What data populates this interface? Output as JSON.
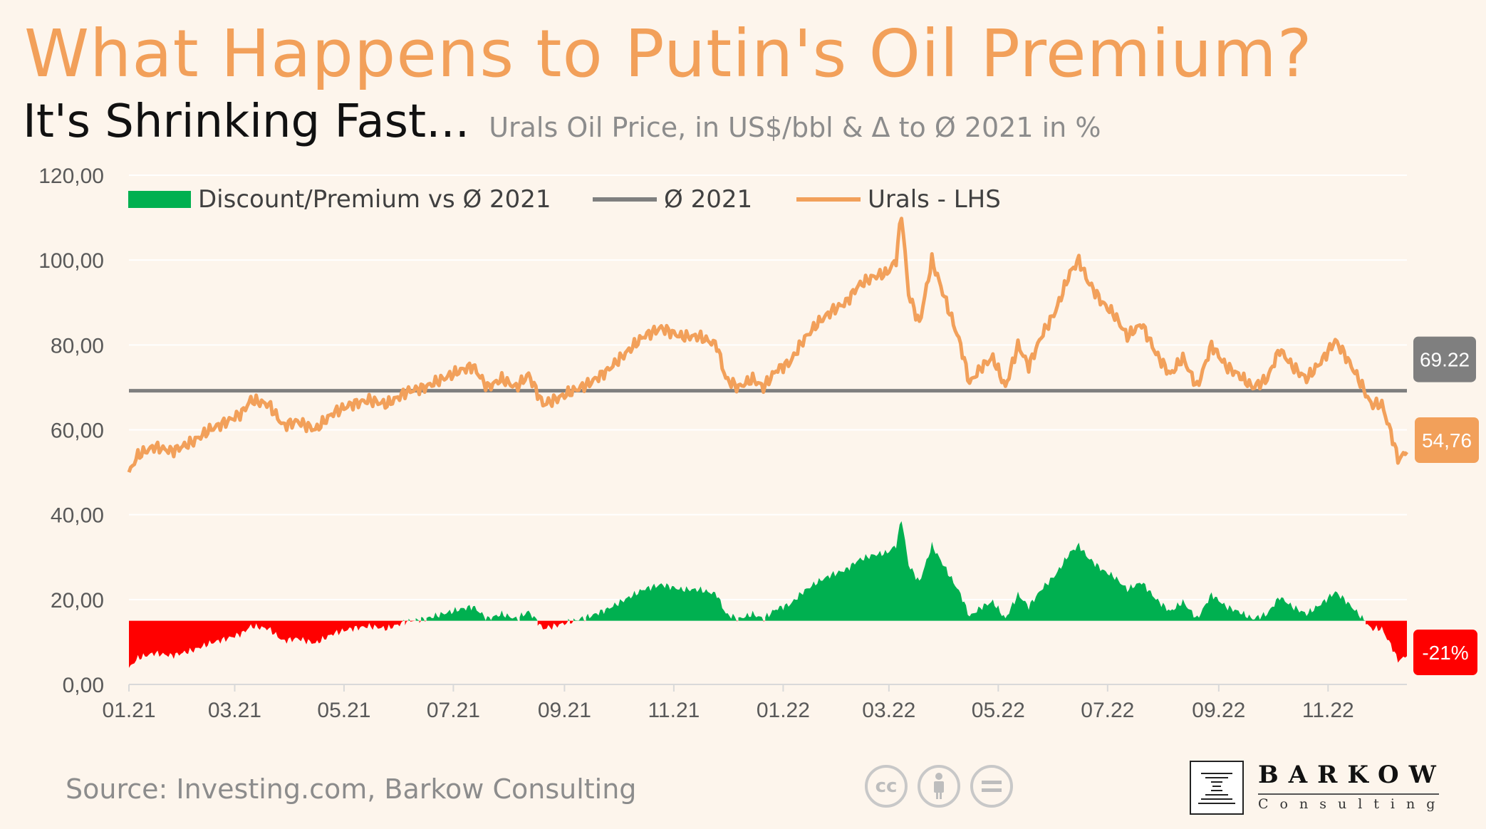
{
  "header": {
    "title": "What Happens to Putin's Oil Premium?",
    "subtitle": "It's Shrinking Fast...",
    "subnote": "Urals Oil Price, in US$/bbl & Δ to Ø 2021 in %"
  },
  "footer": {
    "source": "Source: Investing.com, Barkow Consulting",
    "license_icons": [
      "cc-icon",
      "attribution-icon",
      "no-derivatives-icon"
    ],
    "logo_name": "BARKOW",
    "logo_sub": "Consulting"
  },
  "chart_data": {
    "type": "line",
    "x_tick_labels": [
      "01.21",
      "03.21",
      "05.21",
      "07.21",
      "09.21",
      "11.21",
      "01.22",
      "03.22",
      "05.22",
      "07.22",
      "09.22",
      "11.22"
    ],
    "y_tick_labels": [
      "0,00",
      "20,00",
      "40,00",
      "60,00",
      "80,00",
      "100,00",
      "120,00"
    ],
    "ylim": [
      0,
      120
    ],
    "grid": true,
    "legend_position": "top",
    "legend": [
      {
        "name": "Discount/Premium vs Ø 2021",
        "kind": "area",
        "color": "#00b050"
      },
      {
        "name": "Ø 2021",
        "kind": "line",
        "color": "#7f7f7f"
      },
      {
        "name": "Urals - LHS",
        "kind": "line",
        "color": "#f2a05a"
      }
    ],
    "average_2021": 69.22,
    "average_label": "69.22",
    "last_value_label": "54,76",
    "last_delta_label": "-21%",
    "delta_baseline_lhs": 15,
    "delta_scale_pct_per_lhs_unit": 2.5,
    "colors": {
      "urals": "#f2a05a",
      "average": "#7f7f7f",
      "premium": "#00b050",
      "discount": "#ff0000",
      "grid": "#ffffff",
      "axis_text": "#595959"
    },
    "urals_anchors": [
      [
        "2021-01-01",
        50.0
      ],
      [
        "2021-01-06",
        54.0
      ],
      [
        "2021-01-15",
        56.0
      ],
      [
        "2021-01-25",
        55.0
      ],
      [
        "2021-02-05",
        57.0
      ],
      [
        "2021-02-15",
        60.0
      ],
      [
        "2021-02-25",
        62.0
      ],
      [
        "2021-03-05",
        64.0
      ],
      [
        "2021-03-10",
        67.0
      ],
      [
        "2021-03-20",
        66.0
      ],
      [
        "2021-03-28",
        61.0
      ],
      [
        "2021-04-05",
        62.0
      ],
      [
        "2021-04-15",
        60.0
      ],
      [
        "2021-04-25",
        64.0
      ],
      [
        "2021-05-05",
        66.0
      ],
      [
        "2021-05-15",
        67.0
      ],
      [
        "2021-05-25",
        66.0
      ],
      [
        "2021-06-05",
        69.0
      ],
      [
        "2021-06-15",
        70.0
      ],
      [
        "2021-06-25",
        72.0
      ],
      [
        "2021-07-05",
        74.0
      ],
      [
        "2021-07-12",
        75.0
      ],
      [
        "2021-07-20",
        70.0
      ],
      [
        "2021-07-28",
        72.0
      ],
      [
        "2021-08-05",
        70.0
      ],
      [
        "2021-08-12",
        73.0
      ],
      [
        "2021-08-20",
        66.0
      ],
      [
        "2021-08-26",
        67.0
      ],
      [
        "2021-09-05",
        69.0
      ],
      [
        "2021-09-15",
        71.0
      ],
      [
        "2021-09-25",
        74.0
      ],
      [
        "2021-10-05",
        78.0
      ],
      [
        "2021-10-15",
        82.0
      ],
      [
        "2021-10-25",
        84.0
      ],
      [
        "2021-11-05",
        82.0
      ],
      [
        "2021-11-15",
        82.0
      ],
      [
        "2021-11-25",
        80.0
      ],
      [
        "2021-11-30",
        72.0
      ],
      [
        "2021-12-07",
        70.0
      ],
      [
        "2021-12-15",
        72.0
      ],
      [
        "2021-12-21",
        70.0
      ],
      [
        "2021-12-28",
        74.0
      ],
      [
        "2022-01-05",
        76.0
      ],
      [
        "2022-01-12",
        81.0
      ],
      [
        "2022-01-20",
        85.0
      ],
      [
        "2022-01-28",
        88.0
      ],
      [
        "2022-02-05",
        90.0
      ],
      [
        "2022-02-12",
        94.0
      ],
      [
        "2022-02-20",
        96.0
      ],
      [
        "2022-02-28",
        97.0
      ],
      [
        "2022-03-05",
        100.0
      ],
      [
        "2022-03-08",
        111.0
      ],
      [
        "2022-03-12",
        92.0
      ],
      [
        "2022-03-18",
        85.0
      ],
      [
        "2022-03-25",
        100.0
      ],
      [
        "2022-04-02",
        90.0
      ],
      [
        "2022-04-10",
        80.0
      ],
      [
        "2022-04-15",
        71.0
      ],
      [
        "2022-04-22",
        75.0
      ],
      [
        "2022-04-28",
        77.0
      ],
      [
        "2022-05-05",
        70.0
      ],
      [
        "2022-05-12",
        80.0
      ],
      [
        "2022-05-18",
        75.0
      ],
      [
        "2022-05-25",
        82.0
      ],
      [
        "2022-06-02",
        88.0
      ],
      [
        "2022-06-10",
        97.0
      ],
      [
        "2022-06-15",
        100.0
      ],
      [
        "2022-06-20",
        95.0
      ],
      [
        "2022-06-28",
        90.0
      ],
      [
        "2022-07-05",
        87.0
      ],
      [
        "2022-07-12",
        82.0
      ],
      [
        "2022-07-20",
        85.0
      ],
      [
        "2022-07-28",
        78.0
      ],
      [
        "2022-08-05",
        73.0
      ],
      [
        "2022-08-12",
        77.0
      ],
      [
        "2022-08-20",
        70.0
      ],
      [
        "2022-08-28",
        80.0
      ],
      [
        "2022-09-05",
        75.0
      ],
      [
        "2022-09-12",
        73.0
      ],
      [
        "2022-09-20",
        70.0
      ],
      [
        "2022-09-28",
        72.0
      ],
      [
        "2022-10-05",
        79.0
      ],
      [
        "2022-10-12",
        75.0
      ],
      [
        "2022-10-20",
        72.0
      ],
      [
        "2022-10-28",
        76.0
      ],
      [
        "2022-11-05",
        81.0
      ],
      [
        "2022-11-10",
        78.0
      ],
      [
        "2022-11-18",
        72.0
      ],
      [
        "2022-11-25",
        66.0
      ],
      [
        "2022-12-01",
        66.0
      ],
      [
        "2022-12-07",
        58.0
      ],
      [
        "2022-12-10",
        53.0
      ],
      [
        "2022-12-15",
        54.76
      ]
    ]
  }
}
